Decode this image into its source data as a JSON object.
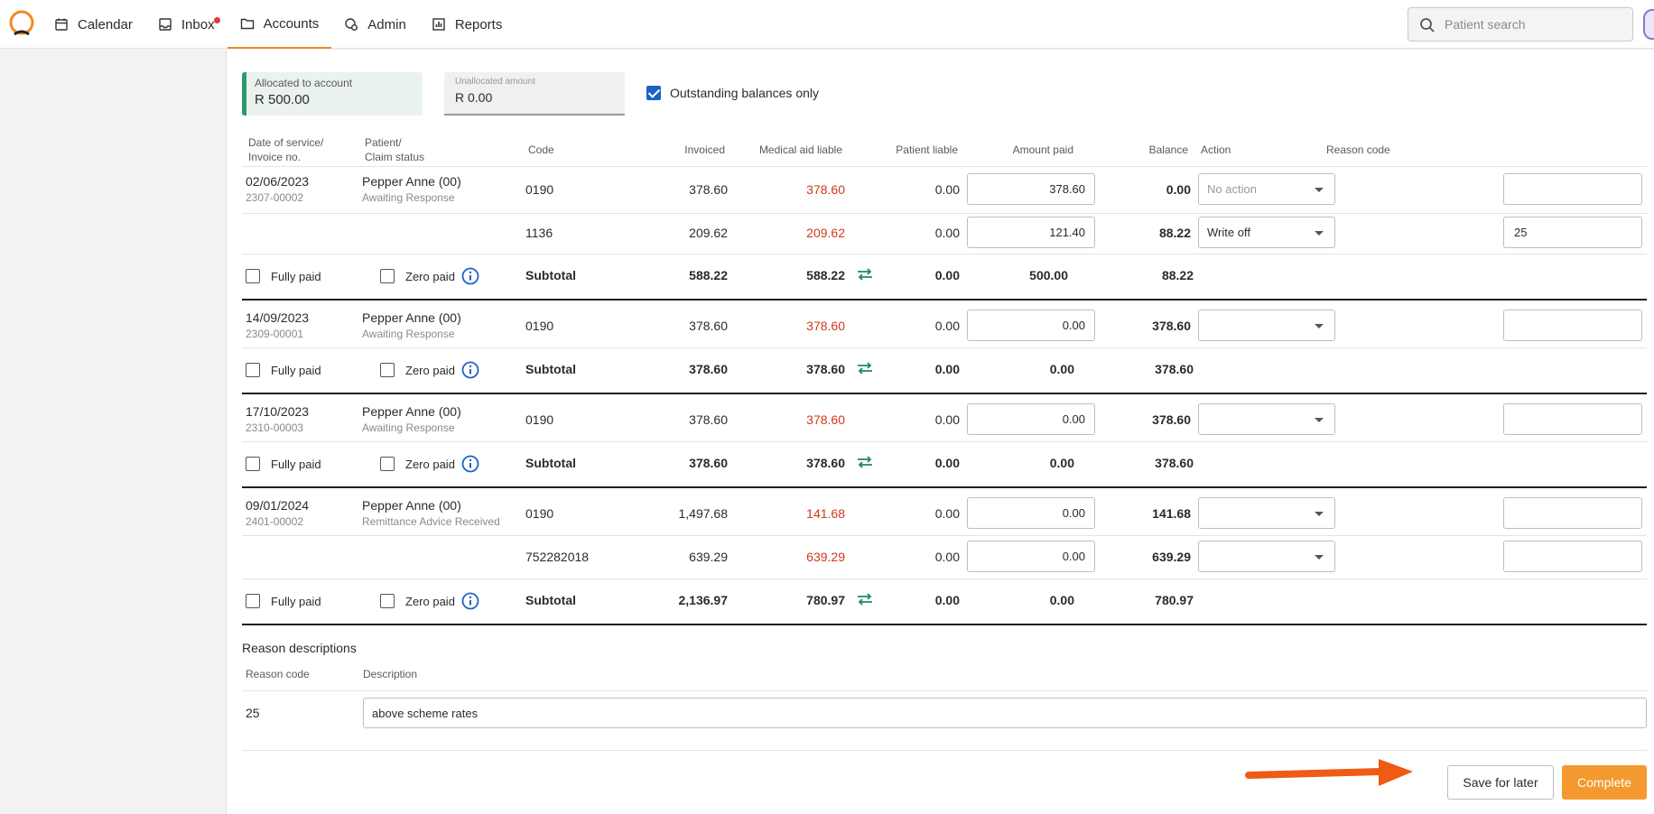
{
  "nav": {
    "items": [
      {
        "label": "Calendar",
        "icon": "calendar-icon"
      },
      {
        "label": "Inbox",
        "icon": "inbox-icon"
      },
      {
        "label": "Accounts",
        "icon": "folder-icon"
      },
      {
        "label": "Admin",
        "icon": "admin-icon"
      },
      {
        "label": "Reports",
        "icon": "reports-icon"
      }
    ],
    "active": "Accounts",
    "accent_color": "#f08a24"
  },
  "search": {
    "placeholder": "Patient search"
  },
  "allocation": {
    "allocated_label": "Allocated to account",
    "allocated_value": "R 500.00",
    "unallocated_label": "Unallocated amount",
    "unallocated_value": "R 0.00",
    "outstanding_label": "Outstanding balances only",
    "outstanding_checked": true
  },
  "table": {
    "headers": {
      "date_line1": "Date of service/",
      "date_line2": "Invoice no.",
      "patient_line1": "Patient/",
      "patient_line2": "Claim status",
      "code": "Code",
      "invoiced": "Invoiced",
      "medical": "Medical aid liable",
      "patient_liable": "Patient liable",
      "amount_paid": "Amount paid",
      "balance": "Balance",
      "action": "Action",
      "reason": "Reason code"
    },
    "labels": {
      "fully_paid": "Fully paid",
      "zero_paid": "Zero paid",
      "subtotal": "Subtotal"
    },
    "groups": [
      {
        "date": "02/06/2023",
        "invoice": "2307-00002",
        "patient": "Pepper Anne (00)",
        "status": "Awaiting Response",
        "lines": [
          {
            "code": "0190",
            "invoiced": "378.60",
            "medical": "378.60",
            "patient_liable": "0.00",
            "amount_paid": "378.60",
            "balance": "0.00",
            "action": "No action",
            "reason": ""
          },
          {
            "code": "1136",
            "invoiced": "209.62",
            "medical": "209.62",
            "patient_liable": "0.00",
            "amount_paid": "121.40",
            "balance": "88.22",
            "action": "Write off",
            "reason": "25"
          }
        ],
        "subtotal": {
          "invoiced": "588.22",
          "medical": "588.22",
          "patient_liable": "0.00",
          "amount_paid": "500.00",
          "balance": "88.22"
        }
      },
      {
        "date": "14/09/2023",
        "invoice": "2309-00001",
        "patient": "Pepper Anne (00)",
        "status": "Awaiting Response",
        "lines": [
          {
            "code": "0190",
            "invoiced": "378.60",
            "medical": "378.60",
            "patient_liable": "0.00",
            "amount_paid": "0.00",
            "balance": "378.60",
            "action": "",
            "reason": ""
          }
        ],
        "subtotal": {
          "invoiced": "378.60",
          "medical": "378.60",
          "patient_liable": "0.00",
          "amount_paid": "0.00",
          "balance": "378.60"
        }
      },
      {
        "date": "17/10/2023",
        "invoice": "2310-00003",
        "patient": "Pepper Anne (00)",
        "status": "Awaiting Response",
        "lines": [
          {
            "code": "0190",
            "invoiced": "378.60",
            "medical": "378.60",
            "patient_liable": "0.00",
            "amount_paid": "0.00",
            "balance": "378.60",
            "action": "",
            "reason": ""
          }
        ],
        "subtotal": {
          "invoiced": "378.60",
          "medical": "378.60",
          "patient_liable": "0.00",
          "amount_paid": "0.00",
          "balance": "378.60"
        }
      },
      {
        "date": "09/01/2024",
        "invoice": "2401-00002",
        "patient": "Pepper Anne (00)",
        "status": "Remittance Advice Received",
        "lines": [
          {
            "code": "0190",
            "invoiced": "1,497.68",
            "medical": "141.68",
            "patient_liable": "0.00",
            "amount_paid": "0.00",
            "balance": "141.68",
            "action": "",
            "reason": ""
          },
          {
            "code": "752282018",
            "invoiced": "639.29",
            "medical": "639.29",
            "patient_liable": "0.00",
            "amount_paid": "0.00",
            "balance": "639.29",
            "action": "",
            "reason": ""
          }
        ],
        "subtotal": {
          "invoiced": "2,136.97",
          "medical": "780.97",
          "patient_liable": "0.00",
          "amount_paid": "0.00",
          "balance": "780.97"
        }
      }
    ]
  },
  "reasons": {
    "title": "Reason descriptions",
    "header_code": "Reason code",
    "header_desc": "Description",
    "rows": [
      {
        "code": "25",
        "description": "above scheme rates"
      }
    ]
  },
  "buttons": {
    "save": "Save for later",
    "complete": "Complete"
  },
  "colors": {
    "medical_liable": "#d0381c",
    "complete_button": "#f3992f",
    "allocated_accent": "#2d9a6e",
    "swap_icon": "#1f8a5c",
    "info_icon": "#1a62c7"
  }
}
